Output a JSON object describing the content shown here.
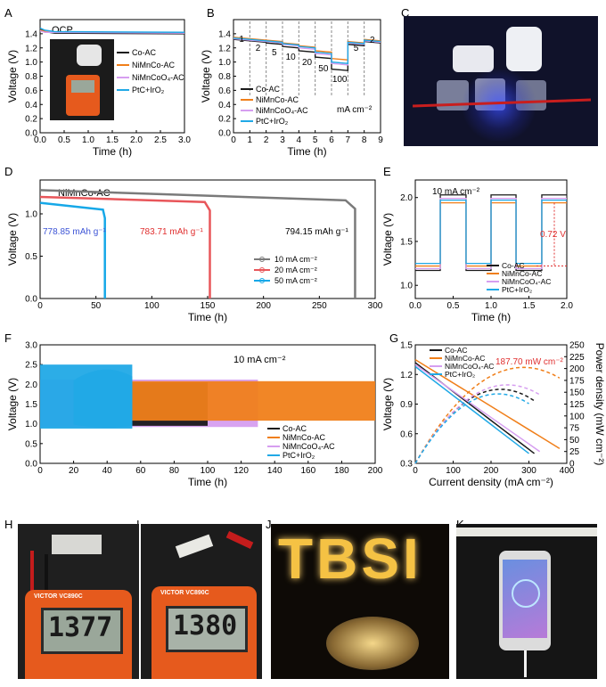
{
  "panel_labels": [
    "A",
    "B",
    "C",
    "D",
    "E",
    "F",
    "G",
    "H",
    "I",
    "J",
    "K"
  ],
  "colors": {
    "black": "#1a1a1a",
    "orange": "#f07f1a",
    "violet": "#d69ef0",
    "cyan": "#21a9e6",
    "gray": "#7a7a7a",
    "red": "#e8565a",
    "blue": "#16a8e8",
    "annot_red": "#e03030",
    "annot_blue": "#3e55d6"
  },
  "chart_data": [
    {
      "id": "A",
      "type": "line",
      "annotation": "OCP",
      "xlabel": "Time (h)",
      "ylabel": "Voltage (V)",
      "xlim": [
        0,
        3
      ],
      "ylim": [
        0,
        1.6
      ],
      "xticks": [
        "0.0",
        "0.5",
        "1.0",
        "1.5",
        "2.0",
        "2.5",
        "3.0"
      ],
      "yticks": [
        "0.0",
        "0.2",
        "0.4",
        "0.6",
        "0.8",
        "1.0",
        "1.2",
        "1.4"
      ],
      "series": [
        {
          "name": "Co-AC",
          "color_key": "black",
          "x": [
            0,
            0.1,
            0.3,
            3.0
          ],
          "y": [
            1.47,
            1.43,
            1.41,
            1.4
          ]
        },
        {
          "name": "NiMnCo-AC",
          "color_key": "orange",
          "x": [
            0,
            0.1,
            0.3,
            3.0
          ],
          "y": [
            1.45,
            1.43,
            1.42,
            1.42
          ]
        },
        {
          "name": "NiMnCoO₄-AC",
          "color_key": "violet",
          "x": [
            0,
            0.1,
            0.3,
            3.0
          ],
          "y": [
            1.44,
            1.42,
            1.42,
            1.41
          ]
        },
        {
          "name": "PtC+IrO₂",
          "color_key": "cyan",
          "x": [
            0,
            0.1,
            0.3,
            3.0
          ],
          "y": [
            1.48,
            1.45,
            1.43,
            1.42
          ]
        }
      ],
      "legend": "inside-right"
    },
    {
      "id": "B",
      "type": "line",
      "xlabel": "Time (h)",
      "ylabel": "Voltage (V)",
      "xlim": [
        0,
        9
      ],
      "ylim": [
        0,
        1.6
      ],
      "xticks": [
        "0",
        "1",
        "2",
        "3",
        "4",
        "5",
        "6",
        "7",
        "8",
        "9"
      ],
      "yticks": [
        "0.0",
        "0.2",
        "0.4",
        "0.6",
        "0.8",
        "1.0",
        "1.2",
        "1.4"
      ],
      "segments_x": [
        0,
        1,
        2,
        3,
        4,
        5,
        6,
        7,
        8,
        9
      ],
      "step_labels": [
        "1",
        "2",
        "5",
        "10",
        "20",
        "50",
        "100",
        "5",
        "2"
      ],
      "unit_label": "mA cm⁻²",
      "series": [
        {
          "name": "Co-AC",
          "color_key": "black",
          "values": [
            1.32,
            1.3,
            1.27,
            1.22,
            1.16,
            1.07,
            0.9,
            1.25,
            1.29
          ]
        },
        {
          "name": "NiMnCo-AC",
          "color_key": "orange",
          "values": [
            1.35,
            1.33,
            1.31,
            1.27,
            1.23,
            1.16,
            1.05,
            1.29,
            1.32
          ]
        },
        {
          "name": "NiMnCoO₄-AC",
          "color_key": "violet",
          "values": [
            1.33,
            1.31,
            1.29,
            1.25,
            1.2,
            1.12,
            0.98,
            1.27,
            1.3
          ]
        },
        {
          "name": "PtC+IrO₂",
          "color_key": "cyan",
          "values": [
            1.34,
            1.32,
            1.3,
            1.26,
            1.22,
            1.14,
            1.0,
            1.28,
            1.31
          ]
        }
      ],
      "legend": "bottom-left"
    },
    {
      "id": "D",
      "type": "line",
      "annotation": "NiMnCo-AC",
      "xlabel": "Time (h)",
      "ylabel": "Voltage (V)",
      "xlim": [
        0,
        300
      ],
      "ylim": [
        0,
        1.4
      ],
      "xticks": [
        "0",
        "50",
        "100",
        "150",
        "200",
        "250",
        "300"
      ],
      "yticks": [
        "0.0",
        "0.5",
        "1.0"
      ],
      "capacity_labels": [
        "778.85 mAh g⁻¹",
        "783.71 mAh g⁻¹",
        "794.15 mAh g⁻¹"
      ],
      "series": [
        {
          "name": "10 mA cm⁻²",
          "color_key": "gray",
          "end_x": 282,
          "start_y": 1.28,
          "end_y": 1.16
        },
        {
          "name": "20 mA cm⁻²",
          "color_key": "red",
          "end_x": 152,
          "start_y": 1.2,
          "end_y": 1.14
        },
        {
          "name": "50 mA cm⁻²",
          "color_key": "blue",
          "end_x": 58,
          "start_y": 1.13,
          "end_y": 1.05
        }
      ],
      "legend": "center-right"
    },
    {
      "id": "E",
      "type": "line",
      "annotation": "10 mA cm⁻²",
      "gap_label": "0.72 V",
      "xlabel": "Time (h)",
      "ylabel": "Voltage (V)",
      "xlim": [
        0,
        2
      ],
      "ylim": [
        0.85,
        2.2
      ],
      "xticks": [
        "0.0",
        "0.5",
        "1.0",
        "1.5",
        "2.0"
      ],
      "yticks": [
        "1.0",
        "1.5",
        "2.0"
      ],
      "switch_times": [
        0.33,
        0.67,
        1.0,
        1.33,
        1.67,
        2.0
      ],
      "series": [
        {
          "name": "Co-AC",
          "color_key": "black",
          "charge": 2.03,
          "discharge": 1.17
        },
        {
          "name": "NiMnCo-AC",
          "color_key": "orange",
          "charge": 1.94,
          "discharge": 1.22
        },
        {
          "name": "NiMnCoO₄-AC",
          "color_key": "violet",
          "charge": 1.99,
          "discharge": 1.19
        },
        {
          "name": "PtC+IrO₂",
          "color_key": "cyan",
          "charge": 1.97,
          "discharge": 1.25
        }
      ],
      "legend": "bottom-right"
    },
    {
      "id": "F",
      "type": "area",
      "annotation": "10 mA cm⁻²",
      "xlabel": "Time (h)",
      "ylabel": "Voltage (V)",
      "xlim": [
        0,
        200
      ],
      "ylim": [
        0,
        3.0
      ],
      "xticks": [
        "0",
        "20",
        "40",
        "60",
        "80",
        "100",
        "120",
        "140",
        "160",
        "180",
        "200"
      ],
      "yticks": [
        "0.0",
        "0.5",
        "1.0",
        "1.5",
        "2.0",
        "2.5",
        "3.0"
      ],
      "series": [
        {
          "name": "Co-AC",
          "color_key": "black",
          "end_x": 100,
          "upper": 2.05,
          "lower": 0.95
        },
        {
          "name": "NiMnCo-AC",
          "color_key": "orange",
          "end_x": 200,
          "upper": 2.08,
          "lower": 1.08
        },
        {
          "name": "NiMnCoO₄-AC",
          "color_key": "violet",
          "end_x": 130,
          "upper": 2.12,
          "lower": 0.92
        },
        {
          "name": "PtC+IrO₂",
          "color_key": "cyan",
          "end_x": 55,
          "upper": 2.5,
          "lower": 0.88
        }
      ],
      "legend": "bottom-right"
    },
    {
      "id": "G",
      "type": "line",
      "annotation": "187.70 mW cm⁻²",
      "xlabel": "Current density (mA cm⁻²)",
      "ylabel": "Voltage (V)",
      "ylabel2": "Power density (mW cm⁻²)",
      "xlim": [
        0,
        420
      ],
      "ylim": [
        0.3,
        1.5
      ],
      "ylim2": [
        0,
        250
      ],
      "xticks": [
        "0",
        "100",
        "200",
        "300",
        "400"
      ],
      "yticks": [
        "0.3",
        "0.6",
        "0.9",
        "1.2",
        "1.5"
      ],
      "y2ticks": [
        "0",
        "25",
        "50",
        "75",
        "100",
        "125",
        "150",
        "175",
        "200",
        "225",
        "250"
      ],
      "series": [
        {
          "name": "Co-AC",
          "color_key": "black",
          "jmax": 330,
          "v0": 1.32,
          "vend": 0.4
        },
        {
          "name": "NiMnCo-AC",
          "color_key": "orange",
          "jmax": 400,
          "v0": 1.35,
          "vend": 0.45
        },
        {
          "name": "NiMnCoO₄-AC",
          "color_key": "violet",
          "jmax": 345,
          "v0": 1.3,
          "vend": 0.42
        },
        {
          "name": "PtC+IrO₂",
          "color_key": "cyan",
          "jmax": 315,
          "v0": 1.28,
          "vend": 0.4
        }
      ],
      "legend": "top-left"
    }
  ],
  "photos": {
    "H_display": "1377",
    "I_display": "1380",
    "brand": "VICTOR",
    "model": "VC890C",
    "J_sign": "TBSI"
  }
}
